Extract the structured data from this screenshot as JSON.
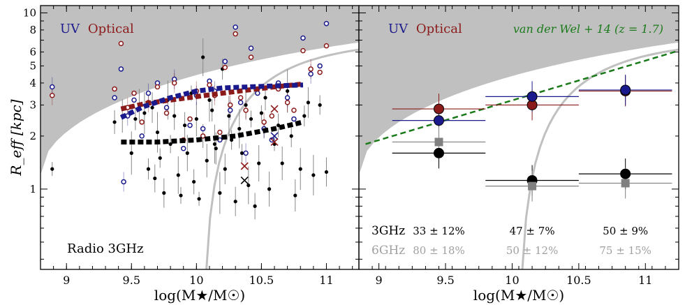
{
  "figure": {
    "shared_ylabel": "R_eff [kpc]",
    "shared_xlabel": "log(M★/M☉)"
  },
  "chart_data": [
    {
      "type": "scatter",
      "panel": "left",
      "xlabel": "log(M★/M☉)",
      "ylabel": "R_eff [kpc]",
      "xlim": [
        8.8,
        11.25
      ],
      "ylim": [
        0.35,
        11
      ],
      "yscale": "log",
      "x_ticks": [
        9,
        9.5,
        10,
        10.5,
        11
      ],
      "x_tick_labels": [
        "9",
        "9.5",
        "10",
        "10.5",
        "11"
      ],
      "y_ticks": [
        1,
        2,
        3,
        4,
        5,
        6,
        8,
        10
      ],
      "y_tick_labels": [
        "1",
        "2",
        "3",
        "4",
        "5",
        "6",
        "8",
        "10"
      ],
      "legend_words": [
        {
          "text": "UV",
          "color": "#1a1a8c"
        },
        {
          "text": "Optical",
          "color": "#8b1a1a"
        }
      ],
      "annotation": "Radio 3GHz",
      "excluded_region_color": "#c0c0c0",
      "resolution_curve_color": "#c0c0c0",
      "trend_lines": [
        {
          "color": "#8b1a1a",
          "x": [
            9.42,
            9.6,
            9.8,
            10.0,
            10.2,
            10.4,
            10.6,
            10.82
          ],
          "y": [
            2.85,
            3.05,
            3.2,
            3.35,
            3.5,
            3.65,
            3.8,
            3.95
          ]
        },
        {
          "color": "#1a1a8c",
          "x": [
            9.42,
            9.6,
            9.8,
            10.0,
            10.2,
            10.4,
            10.6,
            10.82
          ],
          "y": [
            2.55,
            2.95,
            3.3,
            3.6,
            3.75,
            3.8,
            3.85,
            3.9
          ]
        },
        {
          "color": "#000000",
          "x": [
            9.42,
            9.7,
            10.0,
            10.3,
            10.6,
            10.82
          ],
          "y": [
            1.85,
            1.85,
            1.9,
            2.0,
            2.2,
            2.4
          ]
        }
      ],
      "radio_points": {
        "color": "#000000",
        "x": [
          8.89,
          9.37,
          9.43,
          9.5,
          9.53,
          9.56,
          9.6,
          9.63,
          9.66,
          9.7,
          9.72,
          9.75,
          9.78,
          9.8,
          9.83,
          9.86,
          9.88,
          9.91,
          9.93,
          9.96,
          9.98,
          10.0,
          10.02,
          10.05,
          10.08,
          10.1,
          10.12,
          10.15,
          10.18,
          10.2,
          10.22,
          10.25,
          10.27,
          10.3,
          10.33,
          10.35,
          10.38,
          10.4,
          10.42,
          10.45,
          10.48,
          10.5,
          10.53,
          10.56,
          10.6,
          10.63,
          10.66,
          10.7,
          10.73,
          10.76,
          10.8,
          10.83,
          10.86,
          10.9,
          10.95,
          11.0,
          10.14,
          10.52,
          9.68,
          10.05
        ],
        "y": [
          1.3,
          2.4,
          2.6,
          1.6,
          2.5,
          3.0,
          2.7,
          1.3,
          2.9,
          2.1,
          1.5,
          0.95,
          3.2,
          1.8,
          2.6,
          1.2,
          0.92,
          2.3,
          1.6,
          3.5,
          1.1,
          2.5,
          0.88,
          2.0,
          1.45,
          3.2,
          2.8,
          1.7,
          0.95,
          4.8,
          1.3,
          2.6,
          1.9,
          0.85,
          2.2,
          1.6,
          3.0,
          1.05,
          2.5,
          0.8,
          1.4,
          2.7,
          3.3,
          1.0,
          1.8,
          2.3,
          1.4,
          3.6,
          2.0,
          0.92,
          1.3,
          2.6,
          3.1,
          1.2,
          3.0,
          1.25,
          1.8,
          2.2,
          1.15,
          5.6
        ]
      },
      "uv_points": {
        "color": "#1a1a8c",
        "x": [
          8.89,
          9.37,
          9.42,
          9.47,
          9.52,
          9.58,
          9.63,
          9.7,
          9.77,
          9.83,
          9.9,
          9.95,
          10.0,
          10.05,
          10.1,
          10.14,
          10.18,
          10.22,
          10.26,
          10.3,
          10.34,
          10.38,
          10.42,
          10.47,
          10.52,
          10.58,
          10.63,
          10.7,
          10.75,
          10.82,
          10.88,
          10.95,
          11.0,
          9.44
        ],
        "y": [
          3.8,
          3.3,
          4.8,
          2.6,
          3.2,
          2.0,
          3.5,
          4.0,
          2.9,
          4.2,
          1.7,
          2.3,
          3.4,
          2.2,
          4.1,
          3.6,
          1.9,
          5.3,
          2.8,
          8.3,
          3.1,
          1.6,
          6.3,
          3.5,
          2.2,
          1.9,
          4.0,
          3.3,
          2.5,
          7.2,
          4.5,
          5.0,
          8.7,
          1.1
        ]
      },
      "optical_points": {
        "color": "#8b1a1a",
        "x": [
          8.89,
          9.37,
          9.42,
          9.47,
          9.52,
          9.58,
          9.63,
          9.7,
          9.77,
          9.83,
          9.9,
          9.95,
          10.0,
          10.05,
          10.1,
          10.14,
          10.18,
          10.22,
          10.26,
          10.3,
          10.34,
          10.38,
          10.42,
          10.47,
          10.52,
          10.58,
          10.63,
          10.7,
          10.75,
          10.82,
          10.88,
          10.95,
          11.0
        ],
        "y": [
          3.4,
          3.7,
          6.7,
          2.9,
          3.5,
          2.4,
          3.1,
          3.8,
          2.7,
          4.0,
          1.9,
          2.5,
          3.6,
          2.0,
          3.9,
          3.4,
          2.1,
          4.9,
          3.0,
          7.6,
          3.3,
          2.8,
          5.6,
          3.7,
          2.4,
          2.6,
          3.7,
          3.1,
          2.8,
          6.1,
          4.8,
          4.6,
          6.5
        ]
      },
      "crossed_points": [
        {
          "x": 10.37,
          "y": 1.12,
          "color": "#000000"
        },
        {
          "x": 10.37,
          "y": 1.35,
          "color": "#8b1a1a"
        },
        {
          "x": 10.6,
          "y": 2.85,
          "color": "#8b1a1a"
        },
        {
          "x": 10.6,
          "y": 2.0,
          "color": "#1a1a8c"
        },
        {
          "x": 10.6,
          "y": 1.85,
          "color": "#8b1a1a"
        }
      ]
    },
    {
      "type": "scatter",
      "panel": "right",
      "xlabel": "log(M★/M☉)",
      "xlim": [
        8.85,
        11.25
      ],
      "ylim": [
        0.35,
        11
      ],
      "yscale": "log",
      "x_ticks": [
        9,
        9.5,
        10,
        10.5,
        11
      ],
      "x_tick_labels": [
        "9",
        "9.5",
        "10",
        "10.5",
        "11"
      ],
      "legend_words": [
        {
          "text": "UV",
          "color": "#1a1a8c"
        },
        {
          "text": "Optical",
          "color": "#8b1a1a"
        }
      ],
      "reference_label": "van der Wel + 14 (z = 1.7)",
      "reference_color": "#1a7a1a",
      "reference_line": {
        "x": [
          8.9,
          11.25
        ],
        "y": [
          1.8,
          6.1
        ]
      },
      "binned_points": [
        {
          "series": "Optical",
          "color": "#8b1a1a",
          "x": [
            9.45,
            10.15,
            10.85
          ],
          "y": [
            2.85,
            3.0,
            3.6
          ],
          "xerr_lo": [
            9.1,
            9.8,
            10.5
          ],
          "xerr_hi": [
            9.8,
            10.5,
            11.2
          ]
        },
        {
          "series": "UV",
          "color": "#1a1a8c",
          "x": [
            9.45,
            10.15,
            10.85
          ],
          "y": [
            2.45,
            3.35,
            3.65
          ],
          "xerr_lo": [
            9.1,
            9.8,
            10.5
          ],
          "xerr_hi": [
            9.8,
            10.5,
            11.2
          ]
        },
        {
          "series": "3GHz",
          "color": "#000000",
          "x": [
            9.45,
            10.15,
            10.85
          ],
          "y": [
            1.6,
            1.12,
            1.22
          ],
          "xerr_lo": [
            9.1,
            9.8,
            10.5
          ],
          "xerr_hi": [
            9.8,
            10.5,
            11.2
          ]
        },
        {
          "series": "6GHz",
          "color": "#808080",
          "x": [
            9.45,
            10.15,
            10.85
          ],
          "y": [
            1.85,
            1.04,
            1.08
          ],
          "xerr_lo": [
            9.1,
            9.8,
            10.5
          ],
          "xerr_hi": [
            9.8,
            10.5,
            11.2
          ]
        }
      ],
      "fraction_rows": [
        {
          "label": "3GHz",
          "color": "#000000",
          "values": [
            "33 ± 12%",
            "47 ± 7%",
            "50 ± 9%"
          ]
        },
        {
          "label": "6GHz",
          "color": "#a0a0a0",
          "values": [
            "80 ± 18%",
            "50 ± 12%",
            "75 ± 15%"
          ]
        }
      ],
      "fraction_x": [
        9.45,
        10.15,
        10.85
      ],
      "excluded_region_color": "#c0c0c0",
      "resolution_curve_color": "#c0c0c0"
    }
  ]
}
